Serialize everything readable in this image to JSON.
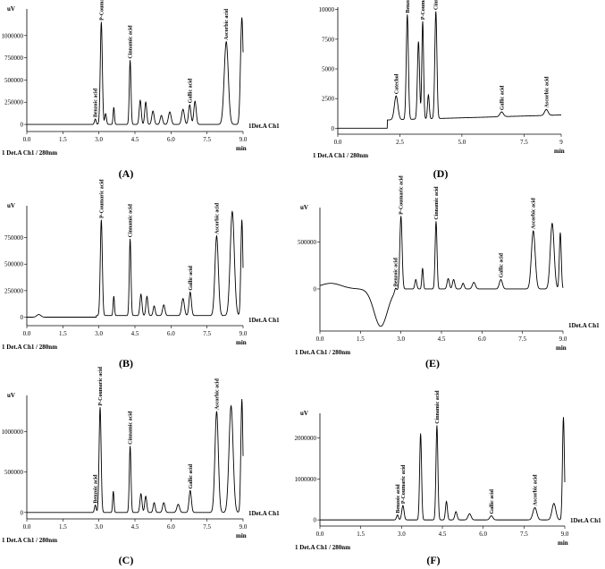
{
  "chart_data": [
    {
      "type": "line",
      "panel_label": "(A)",
      "ylabel": "uV",
      "xlabel": "min",
      "channel_label": "1Det.A Ch1",
      "detector_label": "1  Det.A Ch1 / 280nm",
      "xlim": [
        0,
        9
      ],
      "xticks": [
        "0.0",
        "1.5",
        "3.0",
        "4.5",
        "6.0",
        "7.5",
        "9.0"
      ],
      "ylim": [
        -80000,
        1300000
      ],
      "yticks": [
        {
          "v": 0,
          "t": "0"
        },
        {
          "v": 250000,
          "t": "250000"
        },
        {
          "v": 500000,
          "t": "500000"
        },
        {
          "v": 750000,
          "t": "750000"
        },
        {
          "v": 1000000,
          "t": "1000000"
        }
      ],
      "peaks": [
        {
          "x": 2.85,
          "h": 60000,
          "w": 0.05,
          "label": "Benzoic acid"
        },
        {
          "x": 3.1,
          "h": 1150000,
          "w": 0.06,
          "label": "P-Coumaric acid"
        },
        {
          "x": 3.28,
          "h": 120000,
          "w": 0.05,
          "label": ""
        },
        {
          "x": 3.62,
          "h": 190000,
          "w": 0.04,
          "label": ""
        },
        {
          "x": 4.3,
          "h": 720000,
          "w": 0.05,
          "label": "Cinnamic acid"
        },
        {
          "x": 4.72,
          "h": 270000,
          "w": 0.06,
          "label": ""
        },
        {
          "x": 4.95,
          "h": 250000,
          "w": 0.06,
          "label": ""
        },
        {
          "x": 5.25,
          "h": 150000,
          "w": 0.07,
          "label": ""
        },
        {
          "x": 5.6,
          "h": 100000,
          "w": 0.07,
          "label": ""
        },
        {
          "x": 5.95,
          "h": 140000,
          "w": 0.08,
          "label": ""
        },
        {
          "x": 6.5,
          "h": 170000,
          "w": 0.08,
          "label": ""
        },
        {
          "x": 6.78,
          "h": 220000,
          "w": 0.07,
          "label": "Gallic acid"
        },
        {
          "x": 7.0,
          "h": 260000,
          "w": 0.07,
          "label": ""
        },
        {
          "x": 8.3,
          "h": 930000,
          "w": 0.12,
          "label": "Ascorbic acid"
        },
        {
          "x": 8.95,
          "h": 1200000,
          "w": 0.08,
          "label": ""
        }
      ]
    },
    {
      "type": "line",
      "panel_label": "(B)",
      "ylabel": "uV",
      "xlabel": "min",
      "channel_label": "1Det.A Ch1",
      "detector_label": "1  Det.A Ch1 / 280nm",
      "xlim": [
        0,
        9
      ],
      "xticks": [
        "0.0",
        "1.5",
        "3.0",
        "4.5",
        "6.0",
        "7.5",
        "9.0"
      ],
      "ylim": [
        -80000,
        1050000
      ],
      "yticks": [
        {
          "v": 0,
          "t": "0"
        },
        {
          "v": 250000,
          "t": "250000"
        },
        {
          "v": 500000,
          "t": "500000"
        },
        {
          "v": 750000,
          "t": "750000"
        }
      ],
      "peaks": [
        {
          "x": 0.5,
          "h": 25000,
          "w": 0.12,
          "label": ""
        },
        {
          "x": 3.1,
          "h": 900000,
          "w": 0.06,
          "label": "P-Coumaric acid"
        },
        {
          "x": 3.62,
          "h": 180000,
          "w": 0.04,
          "label": ""
        },
        {
          "x": 4.3,
          "h": 720000,
          "w": 0.05,
          "label": "Cinnamic acid"
        },
        {
          "x": 4.75,
          "h": 200000,
          "w": 0.06,
          "label": ""
        },
        {
          "x": 5.0,
          "h": 180000,
          "w": 0.06,
          "label": ""
        },
        {
          "x": 5.3,
          "h": 90000,
          "w": 0.06,
          "label": ""
        },
        {
          "x": 5.7,
          "h": 100000,
          "w": 0.07,
          "label": ""
        },
        {
          "x": 6.5,
          "h": 160000,
          "w": 0.08,
          "label": ""
        },
        {
          "x": 6.8,
          "h": 220000,
          "w": 0.07,
          "label": "Gallic acid"
        },
        {
          "x": 7.9,
          "h": 750000,
          "w": 0.1,
          "label": "Ascorbic acid"
        },
        {
          "x": 8.55,
          "h": 980000,
          "w": 0.12,
          "label": ""
        },
        {
          "x": 8.95,
          "h": 900000,
          "w": 0.06,
          "label": ""
        }
      ]
    },
    {
      "type": "line",
      "panel_label": "(C)",
      "ylabel": "uV",
      "xlabel": "min",
      "channel_label": "1Det.A Ch1",
      "detector_label": "1  Det.A Ch1 / 280nm",
      "xlim": [
        0,
        9
      ],
      "xticks": [
        "0.0",
        "1.5",
        "3.0",
        "4.5",
        "6.0",
        "7.5",
        "9.0"
      ],
      "ylim": [
        -80000,
        1450000
      ],
      "yticks": [
        {
          "v": 0,
          "t": "0"
        },
        {
          "v": 500000,
          "t": "500000"
        },
        {
          "v": 1000000,
          "t": "1000000"
        }
      ],
      "peaks": [
        {
          "x": 2.85,
          "h": 90000,
          "w": 0.05,
          "label": "Benzoic acid"
        },
        {
          "x": 3.05,
          "h": 1300000,
          "w": 0.06,
          "label": "P-Coumaric acid"
        },
        {
          "x": 3.6,
          "h": 260000,
          "w": 0.04,
          "label": ""
        },
        {
          "x": 4.3,
          "h": 820000,
          "w": 0.05,
          "label": "Cinnamic acid"
        },
        {
          "x": 4.75,
          "h": 230000,
          "w": 0.06,
          "label": ""
        },
        {
          "x": 4.95,
          "h": 200000,
          "w": 0.06,
          "label": ""
        },
        {
          "x": 5.3,
          "h": 120000,
          "w": 0.06,
          "label": ""
        },
        {
          "x": 5.7,
          "h": 120000,
          "w": 0.07,
          "label": ""
        },
        {
          "x": 6.3,
          "h": 100000,
          "w": 0.08,
          "label": ""
        },
        {
          "x": 6.8,
          "h": 270000,
          "w": 0.07,
          "label": "Gallic acid"
        },
        {
          "x": 7.9,
          "h": 1250000,
          "w": 0.1,
          "label": "Ascorbic acid"
        },
        {
          "x": 8.5,
          "h": 1320000,
          "w": 0.12,
          "label": ""
        },
        {
          "x": 8.95,
          "h": 1400000,
          "w": 0.06,
          "label": ""
        }
      ]
    },
    {
      "type": "line",
      "panel_label": "(D)",
      "ylabel": "",
      "xlabel": "min",
      "channel_label": "",
      "detector_label": "1  Det.A Ch1 / 280nm",
      "xlim": [
        0,
        9
      ],
      "xticks": [
        "0.0",
        "2.5",
        "5.0",
        "7.5",
        "9"
      ],
      "ylim": [
        -500,
        10200
      ],
      "yticks": [
        {
          "v": 0,
          "t": "0"
        },
        {
          "v": 2500,
          "t": "2500"
        },
        {
          "v": 5000,
          "t": "5000"
        },
        {
          "v": 7500,
          "t": "7500"
        },
        {
          "v": 10000,
          "t": "10000"
        }
      ],
      "peaks": [
        {
          "x": 2.35,
          "h": 2000,
          "w": 0.1,
          "label": "Catechol"
        },
        {
          "x": 2.8,
          "h": 8800,
          "w": 0.06,
          "label": "Benzoic acid"
        },
        {
          "x": 3.25,
          "h": 6500,
          "w": 0.06,
          "label": ""
        },
        {
          "x": 3.42,
          "h": 8200,
          "w": 0.05,
          "label": "P-Coumaric acid"
        },
        {
          "x": 3.65,
          "h": 2000,
          "w": 0.05,
          "label": ""
        },
        {
          "x": 3.95,
          "h": 9000,
          "w": 0.06,
          "label": "Cinnamic acid"
        },
        {
          "x": 6.6,
          "h": 400,
          "w": 0.1,
          "label": "Gallic acid"
        },
        {
          "x": 8.4,
          "h": 500,
          "w": 0.1,
          "label": "Ascorbic acid"
        }
      ]
    },
    {
      "type": "line",
      "panel_label": "(E)",
      "ylabel": "uV",
      "xlabel": "min",
      "channel_label": "1Det.A Ch1",
      "detector_label": "1  Det.A Ch1 / 280nm",
      "xlim": [
        0,
        9
      ],
      "xticks": [
        "0.0",
        "1.5",
        "3.0",
        "4.5",
        "6.0",
        "7.5",
        "9.0"
      ],
      "ylim": [
        -450000,
        870000
      ],
      "yticks": [
        {
          "v": 0,
          "t": "0"
        },
        {
          "v": 500000,
          "t": "500000"
        }
      ],
      "peaks": [
        {
          "x": 2.8,
          "h": 40000,
          "w": 0.05,
          "label": "Benzoic acid"
        },
        {
          "x": 3.0,
          "h": 780000,
          "w": 0.06,
          "label": "P-Coumaric acid"
        },
        {
          "x": 3.55,
          "h": 100000,
          "w": 0.05,
          "label": ""
        },
        {
          "x": 3.8,
          "h": 220000,
          "w": 0.04,
          "label": ""
        },
        {
          "x": 4.3,
          "h": 720000,
          "w": 0.05,
          "label": "Cinnamic acid"
        },
        {
          "x": 4.75,
          "h": 110000,
          "w": 0.06,
          "label": ""
        },
        {
          "x": 4.95,
          "h": 100000,
          "w": 0.06,
          "label": ""
        },
        {
          "x": 5.3,
          "h": 60000,
          "w": 0.06,
          "label": ""
        },
        {
          "x": 5.7,
          "h": 70000,
          "w": 0.08,
          "label": ""
        },
        {
          "x": 6.7,
          "h": 100000,
          "w": 0.08,
          "label": "Gallic acid"
        },
        {
          "x": 7.9,
          "h": 620000,
          "w": 0.1,
          "label": "Ascorbic acid"
        },
        {
          "x": 8.6,
          "h": 700000,
          "w": 0.1,
          "label": ""
        },
        {
          "x": 8.9,
          "h": 600000,
          "w": 0.05,
          "label": ""
        }
      ]
    },
    {
      "type": "line",
      "panel_label": "(F)",
      "ylabel": "uV",
      "xlabel": "min",
      "channel_label": "1Det.A Ch1",
      "detector_label": "1  Det.A Ch1 / 280nm",
      "xlim": [
        0,
        9
      ],
      "xticks": [
        "0.0",
        "1.5",
        "3.0",
        "4.5",
        "6.0",
        "7.5",
        "9.0"
      ],
      "ylim": [
        -150000,
        2600000
      ],
      "yticks": [
        {
          "v": 0,
          "t": "0"
        },
        {
          "v": 1000000,
          "t": "1000000"
        },
        {
          "v": 2000000,
          "t": "2000000"
        }
      ],
      "peaks": [
        {
          "x": 2.85,
          "h": 120000,
          "w": 0.05,
          "label": "Benzoic acid"
        },
        {
          "x": 3.05,
          "h": 350000,
          "w": 0.06,
          "label": "P-Coumaric acid"
        },
        {
          "x": 3.7,
          "h": 2100000,
          "w": 0.05,
          "label": ""
        },
        {
          "x": 4.3,
          "h": 2300000,
          "w": 0.05,
          "label": "Cinnamic acid"
        },
        {
          "x": 4.65,
          "h": 450000,
          "w": 0.05,
          "label": ""
        },
        {
          "x": 5.0,
          "h": 200000,
          "w": 0.06,
          "label": ""
        },
        {
          "x": 5.5,
          "h": 150000,
          "w": 0.08,
          "label": ""
        },
        {
          "x": 6.3,
          "h": 100000,
          "w": 0.08,
          "label": "Gallic acid"
        },
        {
          "x": 7.9,
          "h": 300000,
          "w": 0.1,
          "label": "Ascorbic acid"
        },
        {
          "x": 8.6,
          "h": 400000,
          "w": 0.1,
          "label": ""
        },
        {
          "x": 8.95,
          "h": 2500000,
          "w": 0.05,
          "label": ""
        }
      ]
    }
  ]
}
